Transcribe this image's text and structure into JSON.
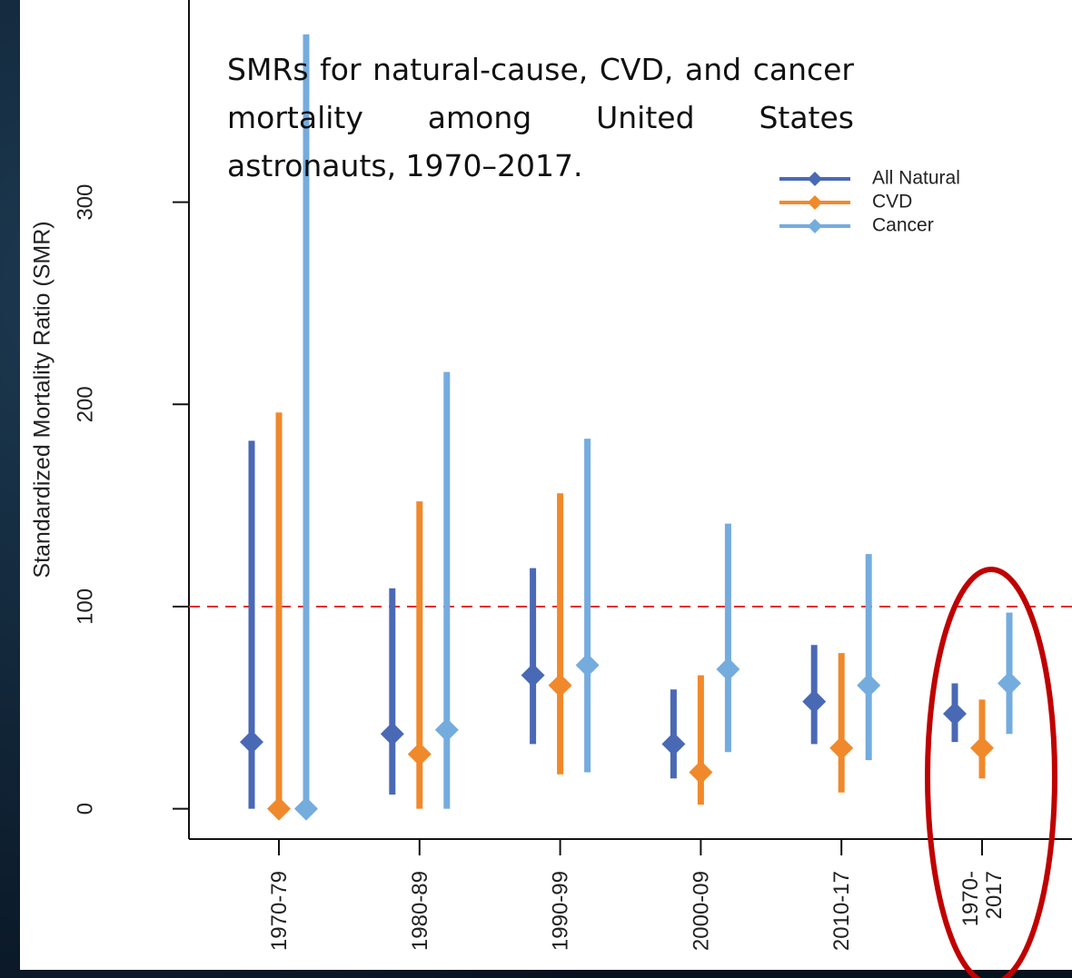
{
  "chart_data": {
    "type": "interval",
    "annotation": "SMRs for natural-cause, CVD, and cancer mortality among United States astronauts, 1970–2017.",
    "y_label": "Standardized Mortality Ratio (SMR)",
    "categories": [
      "1970-79",
      "1980-89",
      "1990-99",
      "2000-09",
      "2010-17",
      "1970-\n2017"
    ],
    "series": [
      {
        "name": "All Natural",
        "color": "#4a69b5",
        "values": [
          33,
          37,
          66,
          32,
          53,
          47
        ],
        "lower": [
          0,
          7,
          32,
          15,
          32,
          33
        ],
        "upper": [
          182,
          109,
          119,
          59,
          81,
          62
        ]
      },
      {
        "name": "CVD",
        "color": "#f0892b",
        "values": [
          0,
          27,
          61,
          18,
          30,
          30
        ],
        "lower": [
          0,
          0,
          17,
          2,
          8,
          15
        ],
        "upper": [
          196,
          152,
          156,
          66,
          77,
          54
        ]
      },
      {
        "name": "Cancer",
        "color": "#74acde",
        "values": [
          0,
          39,
          71,
          69,
          61,
          62
        ],
        "lower": [
          0,
          0,
          18,
          28,
          24,
          37
        ],
        "upper": [
          383,
          216,
          183,
          141,
          126,
          97
        ]
      }
    ],
    "reference_line": 100,
    "reference_color": "#e03030",
    "ylim": [
      -15,
      400
    ],
    "yticks": [
      0,
      100,
      200,
      300
    ],
    "legend": "top-right"
  }
}
